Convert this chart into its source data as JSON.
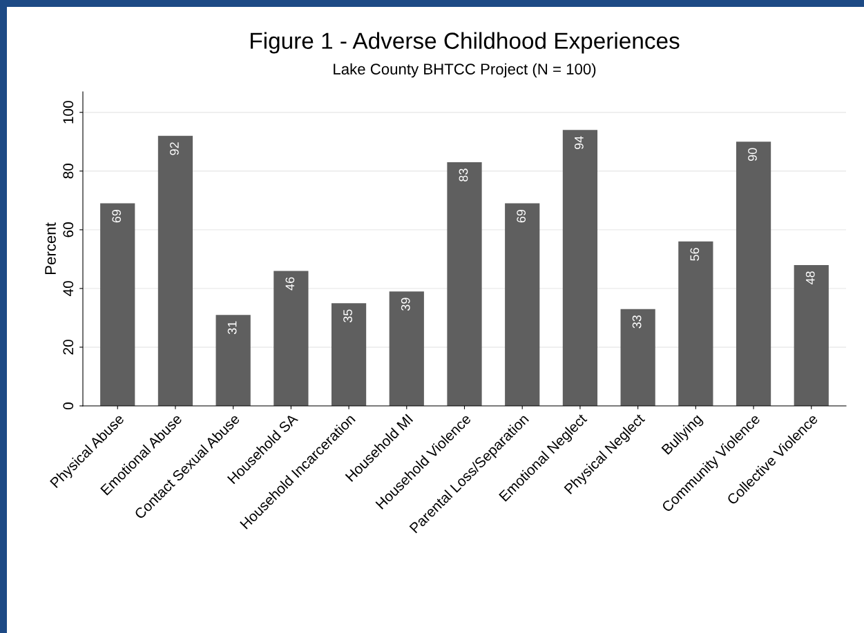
{
  "chart_data": {
    "type": "bar",
    "title": "Figure 1 - Adverse Childhood Experiences",
    "subtitle": "Lake County BHTCC Project (N = 100)",
    "ylabel": "Percent",
    "categories": [
      "Physical Abuse",
      "Emotional Abuse",
      "Contact Sexual Abuse",
      "Household SA",
      "Household Incarceration",
      "Household MI",
      "Household Violence",
      "Parental Loss/Separation",
      "Emotional Neglect",
      "Physical Neglect",
      "Bullying",
      "Community Violence",
      "Collective Violence"
    ],
    "values": [
      69,
      92,
      31,
      46,
      35,
      39,
      83,
      69,
      94,
      33,
      56,
      90,
      48
    ],
    "color": "#5f5f5f",
    "ylim": [
      0,
      107
    ],
    "yticks": [
      0,
      20,
      40,
      60,
      80,
      100
    ],
    "grid": "y",
    "data_labels": true
  }
}
